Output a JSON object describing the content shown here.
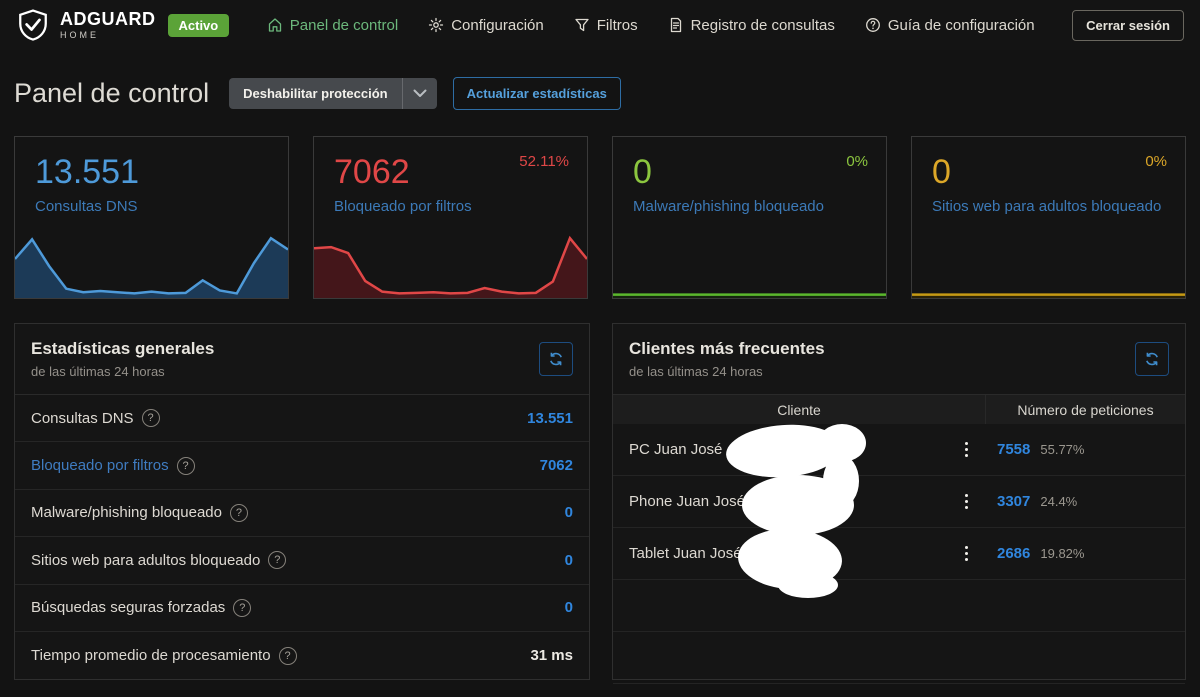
{
  "navbar": {
    "brand": {
      "name": "ADGUARD",
      "sub": "HOME"
    },
    "status_badge": "Activo",
    "items": [
      {
        "label": "Panel de control"
      },
      {
        "label": "Configuración"
      },
      {
        "label": "Filtros"
      },
      {
        "label": "Registro de consultas"
      },
      {
        "label": "Guía de configuración"
      }
    ],
    "logout_label": "Cerrar sesión"
  },
  "page": {
    "title": "Panel de control",
    "disable_protection_label": "Deshabilitar protección",
    "refresh_stats_label": "Actualizar estadísticas"
  },
  "colors": {
    "blue": "#4e9ad9",
    "red": "#e04747",
    "green": "#8cc63f",
    "yellow": "#dca728",
    "value_blue": "#3086de"
  },
  "cards": [
    {
      "value": "13.551",
      "label": "Consultas DNS",
      "percent": "",
      "color": "#4e9ad9"
    },
    {
      "value": "7062",
      "label": "Bloqueado por filtros",
      "percent": "52.11%",
      "color": "#e04747"
    },
    {
      "value": "0",
      "label": "Malware/phishing bloqueado",
      "percent": "0%",
      "color": "#8cc63f"
    },
    {
      "value": "0",
      "label": "Sitios web para adultos bloqueado",
      "percent": "0%",
      "color": "#dca728"
    }
  ],
  "chart_data": [
    {
      "type": "area",
      "series": "Consultas DNS",
      "color": "#4e9ad9",
      "fill": "#1c3a57",
      "y_normalized": [
        0.62,
        0.95,
        0.5,
        0.12,
        0.06,
        0.08,
        0.06,
        0.04,
        0.07,
        0.04,
        0.05,
        0.26,
        0.09,
        0.04,
        0.55,
        0.97,
        0.78
      ]
    },
    {
      "type": "area",
      "series": "Bloqueado por filtros",
      "color": "#e04747",
      "fill": "#44161a",
      "y_normalized": [
        0.8,
        0.82,
        0.72,
        0.25,
        0.07,
        0.04,
        0.05,
        0.06,
        0.04,
        0.05,
        0.13,
        0.07,
        0.04,
        0.05,
        0.24,
        0.97,
        0.62
      ]
    },
    {
      "type": "area",
      "series": "Malware/phishing bloqueado",
      "color": "#5bb82d",
      "fill": "#15240f",
      "y_normalized": [
        0.02,
        0.02,
        0.02,
        0.02,
        0.02,
        0.02,
        0.02,
        0.02,
        0.02,
        0.02,
        0.02,
        0.02,
        0.02,
        0.02,
        0.02,
        0.02,
        0.02
      ]
    },
    {
      "type": "area",
      "series": "Sitios web para adultos bloqueado",
      "color": "#c69a14",
      "fill": "#2a2208",
      "y_normalized": [
        0.02,
        0.02,
        0.02,
        0.02,
        0.02,
        0.02,
        0.02,
        0.02,
        0.02,
        0.02,
        0.02,
        0.02,
        0.02,
        0.02,
        0.02,
        0.02,
        0.02
      ]
    }
  ],
  "general_stats": {
    "title": "Estadísticas generales",
    "subtitle": "de las últimas 24 horas",
    "help_glyph": "?",
    "rows": [
      {
        "label": "Consultas DNS",
        "value": "13.551"
      },
      {
        "label": "Bloqueado por filtros",
        "value": "7062"
      },
      {
        "label": "Malware/phishing bloqueado",
        "value": "0"
      },
      {
        "label": "Sitios web para adultos bloqueado",
        "value": "0"
      },
      {
        "label": "Búsquedas seguras forzadas",
        "value": "0"
      },
      {
        "label": "Tiempo promedio de procesamiento",
        "value": "31 ms"
      }
    ]
  },
  "top_clients": {
    "title": "Clientes más frecuentes",
    "subtitle": "de las últimas 24 horas",
    "col_client": "Cliente",
    "col_requests": "Número de peticiones",
    "rows": [
      {
        "name": "PC Juan José",
        "requests": "7558",
        "percent": "55.77%",
        "bar_width": "55.77%",
        "bar_color": "#63ad1f"
      },
      {
        "name": "Phone Juan José",
        "requests": "3307",
        "percent": "24.4%",
        "bar_width": "24.4%",
        "bar_color": "#b8920e"
      },
      {
        "name": "Tablet Juan José",
        "requests": "2686",
        "percent": "19.82%",
        "bar_width": "19.82%",
        "bar_color": "#b8920e"
      }
    ]
  }
}
